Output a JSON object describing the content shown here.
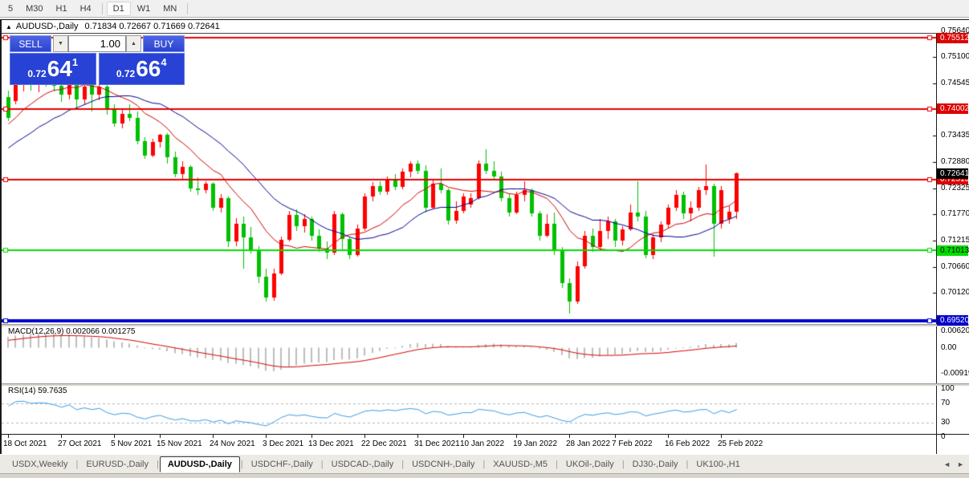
{
  "toolbar": {
    "timeframes": [
      "5",
      "M30",
      "H1",
      "H4",
      "D1",
      "W1",
      "MN"
    ],
    "active": "D1"
  },
  "window": {
    "title_symbol": "AUDUSD-,Daily",
    "title_ohlc": "0.71834 0.72667 0.71669 0.72641"
  },
  "trade_panel": {
    "sell_label": "SELL",
    "buy_label": "BUY",
    "volume": "1.00",
    "bid_small": "0.72",
    "bid_big": "64",
    "bid_sup": "1",
    "ask_small": "0.72",
    "ask_big": "66",
    "ask_sup": "4"
  },
  "chart_data": {
    "type": "candlestick",
    "symbol": "AUDUSD-",
    "timeframe": "Daily",
    "current_ohlc": {
      "open": 0.71834,
      "high": 0.72667,
      "low": 0.71669,
      "close": 0.72641
    },
    "price_ticks": [
      "0.75640",
      "0.75100",
      "0.74545",
      "0.73435",
      "0.72880",
      "0.72325",
      "0.71770",
      "0.71215",
      "0.70660",
      "0.70120"
    ],
    "levels": [
      {
        "price": 0.75512,
        "label": "0.75512",
        "color": "#e60000",
        "width": 2,
        "tag_bg": "#dd0000",
        "tag_fg": "#ffffff"
      },
      {
        "price": 0.74002,
        "label": "0.74002",
        "color": "#e60000",
        "width": 2,
        "tag_bg": "#dd0000",
        "tag_fg": "#ffffff"
      },
      {
        "price": 0.72513,
        "label": "0.72513",
        "color": "#e60000",
        "width": 2,
        "tag_bg": "#dd0000",
        "tag_fg": "#ffffff"
      },
      {
        "price": 0.71013,
        "label": "0.71013",
        "color": "#00dd00",
        "width": 2,
        "tag_bg": "#00dd00",
        "tag_fg": "#000000"
      },
      {
        "price": 0.6952,
        "label": "0.69520",
        "color": "#0000d0",
        "width": 4,
        "tag_bg": "#0000cc",
        "tag_fg": "#ffffff"
      }
    ],
    "current_price": {
      "price": 0.72641,
      "label": "0.72641",
      "tag_bg": "#000000",
      "tag_fg": "#ffffff"
    },
    "x_labels": [
      {
        "i": 0,
        "t": "18 Oct 2021"
      },
      {
        "i": 7,
        "t": "27 Oct 2021"
      },
      {
        "i": 14,
        "t": "5 Nov 2021"
      },
      {
        "i": 20,
        "t": "15 Nov 2021"
      },
      {
        "i": 27,
        "t": "24 Nov 2021"
      },
      {
        "i": 34,
        "t": "3 Dec 2021"
      },
      {
        "i": 40,
        "t": "13 Dec 2021"
      },
      {
        "i": 47,
        "t": "22 Dec 2021"
      },
      {
        "i": 54,
        "t": "31 Dec 2021"
      },
      {
        "i": 60,
        "t": "10 Jan 2022"
      },
      {
        "i": 67,
        "t": "19 Jan 2022"
      },
      {
        "i": 74,
        "t": "28 Jan 2022"
      },
      {
        "i": 80,
        "t": "7 Feb 2022"
      },
      {
        "i": 87,
        "t": "16 Feb 2022"
      },
      {
        "i": 94,
        "t": "25 Feb 2022"
      }
    ],
    "candles": [
      [
        0.7425,
        0.744,
        0.7375,
        0.7382
      ],
      [
        0.7417,
        0.7468,
        0.741,
        0.7462
      ],
      [
        0.7462,
        0.7475,
        0.7438,
        0.747
      ],
      [
        0.747,
        0.7478,
        0.744,
        0.7452
      ],
      [
        0.7452,
        0.7468,
        0.7435,
        0.7465
      ],
      [
        0.7465,
        0.7472,
        0.7448,
        0.7462
      ],
      [
        0.7462,
        0.747,
        0.7438,
        0.745
      ],
      [
        0.745,
        0.7458,
        0.7415,
        0.743
      ],
      [
        0.743,
        0.747,
        0.742,
        0.7465
      ],
      [
        0.7465,
        0.7468,
        0.7398,
        0.742
      ],
      [
        0.742,
        0.7455,
        0.7408,
        0.7448
      ],
      [
        0.7459,
        0.7462,
        0.7395,
        0.743
      ],
      [
        0.743,
        0.7455,
        0.7418,
        0.7448
      ],
      [
        0.7448,
        0.7452,
        0.7388,
        0.7398
      ],
      [
        0.7398,
        0.741,
        0.7362,
        0.737
      ],
      [
        0.737,
        0.7398,
        0.736,
        0.739
      ],
      [
        0.739,
        0.741,
        0.7375,
        0.7382
      ],
      [
        0.7382,
        0.7395,
        0.7325,
        0.7332
      ],
      [
        0.7332,
        0.734,
        0.7295,
        0.7302
      ],
      [
        0.7302,
        0.7338,
        0.7298,
        0.733
      ],
      [
        0.733,
        0.7348,
        0.7318,
        0.7345
      ],
      [
        0.7345,
        0.735,
        0.7285,
        0.7298
      ],
      [
        0.7298,
        0.731,
        0.7255,
        0.7262
      ],
      [
        0.7262,
        0.729,
        0.725,
        0.7278
      ],
      [
        0.7278,
        0.7282,
        0.7225,
        0.7232
      ],
      [
        0.7232,
        0.7255,
        0.7218,
        0.7228
      ],
      [
        0.7228,
        0.7248,
        0.7222,
        0.7242
      ],
      [
        0.7242,
        0.7245,
        0.7185,
        0.7192
      ],
      [
        0.7192,
        0.722,
        0.7182,
        0.7212
      ],
      [
        0.7212,
        0.7215,
        0.7108,
        0.712
      ],
      [
        0.712,
        0.717,
        0.711,
        0.7158
      ],
      [
        0.7158,
        0.7172,
        0.7063,
        0.7128
      ],
      [
        0.7128,
        0.715,
        0.7095,
        0.7102
      ],
      [
        0.7102,
        0.711,
        0.7032,
        0.7045
      ],
      [
        0.7045,
        0.7062,
        0.6993,
        0.7002
      ],
      [
        0.7002,
        0.7062,
        0.6995,
        0.7052
      ],
      [
        0.7052,
        0.713,
        0.7048,
        0.7124
      ],
      [
        0.7124,
        0.7185,
        0.712,
        0.7176
      ],
      [
        0.7176,
        0.7188,
        0.7142,
        0.7152
      ],
      [
        0.7152,
        0.7178,
        0.7138,
        0.7168
      ],
      [
        0.7168,
        0.7172,
        0.7122,
        0.7132
      ],
      [
        0.7132,
        0.7145,
        0.7098,
        0.7105
      ],
      [
        0.7105,
        0.712,
        0.7082,
        0.7096
      ],
      [
        0.7096,
        0.7185,
        0.7092,
        0.7178
      ],
      [
        0.7178,
        0.7182,
        0.7102,
        0.7125
      ],
      [
        0.7125,
        0.713,
        0.7082,
        0.7092
      ],
      [
        0.7092,
        0.7155,
        0.7088,
        0.7148
      ],
      [
        0.7148,
        0.7222,
        0.7142,
        0.7215
      ],
      [
        0.7215,
        0.7245,
        0.7205,
        0.7238
      ],
      [
        0.7238,
        0.7248,
        0.7218,
        0.7225
      ],
      [
        0.7225,
        0.7258,
        0.7218,
        0.7252
      ],
      [
        0.7252,
        0.7262,
        0.7228,
        0.7235
      ],
      [
        0.7235,
        0.7275,
        0.723,
        0.7268
      ],
      [
        0.7268,
        0.729,
        0.7255,
        0.7285
      ],
      [
        0.7285,
        0.7292,
        0.7262,
        0.727
      ],
      [
        0.727,
        0.7282,
        0.7182,
        0.7192
      ],
      [
        0.7192,
        0.725,
        0.7188,
        0.7242
      ],
      [
        0.7242,
        0.7275,
        0.7222,
        0.7228
      ],
      [
        0.7228,
        0.7232,
        0.7155,
        0.7165
      ],
      [
        0.7165,
        0.7205,
        0.7158,
        0.7185
      ],
      [
        0.7185,
        0.7222,
        0.718,
        0.7215
      ],
      [
        0.7198,
        0.7222,
        0.7192,
        0.7212
      ],
      [
        0.7212,
        0.7292,
        0.7208,
        0.7285
      ],
      [
        0.7285,
        0.7315,
        0.7262,
        0.727
      ],
      [
        0.727,
        0.729,
        0.7252,
        0.7258
      ],
      [
        0.7258,
        0.7268,
        0.7205,
        0.7212
      ],
      [
        0.7212,
        0.7222,
        0.7172,
        0.7182
      ],
      [
        0.7182,
        0.7225,
        0.7178,
        0.7218
      ],
      [
        0.7218,
        0.7248,
        0.7205,
        0.7228
      ],
      [
        0.7228,
        0.7232,
        0.7172,
        0.718
      ],
      [
        0.718,
        0.7185,
        0.7122,
        0.7132
      ],
      [
        0.7132,
        0.7178,
        0.7128,
        0.7158
      ],
      [
        0.7158,
        0.7182,
        0.7092,
        0.7102
      ],
      [
        0.7102,
        0.7108,
        0.7022,
        0.7032
      ],
      [
        0.7032,
        0.7042,
        0.6968,
        0.6992
      ],
      [
        0.6992,
        0.7078,
        0.6988,
        0.7068
      ],
      [
        0.7068,
        0.7142,
        0.7062,
        0.7132
      ],
      [
        0.7132,
        0.7148,
        0.7098,
        0.7108
      ],
      [
        0.7108,
        0.7168,
        0.7102,
        0.7142
      ],
      [
        0.7142,
        0.7172,
        0.7125,
        0.7162
      ],
      [
        0.7162,
        0.7168,
        0.7108,
        0.7122
      ],
      [
        0.7122,
        0.7152,
        0.7112,
        0.7145
      ],
      [
        0.7145,
        0.7198,
        0.7142,
        0.7182
      ],
      [
        0.7182,
        0.7248,
        0.7162,
        0.7172
      ],
      [
        0.7172,
        0.7185,
        0.7085,
        0.7092
      ],
      [
        0.7092,
        0.7135,
        0.7082,
        0.7128
      ],
      [
        0.7128,
        0.7162,
        0.7118,
        0.7155
      ],
      [
        0.7155,
        0.7198,
        0.7148,
        0.7192
      ],
      [
        0.7192,
        0.7228,
        0.7185,
        0.7218
      ],
      [
        0.7218,
        0.7225,
        0.7168,
        0.718
      ],
      [
        0.718,
        0.7205,
        0.7162,
        0.7192
      ],
      [
        0.7192,
        0.7235,
        0.7185,
        0.7228
      ],
      [
        0.7228,
        0.7283,
        0.7218,
        0.7238
      ],
      [
        0.7238,
        0.7242,
        0.7087,
        0.7158
      ],
      [
        0.7158,
        0.7238,
        0.7148,
        0.7228
      ],
      [
        0.7168,
        0.7195,
        0.7158,
        0.7183
      ],
      [
        0.71834,
        0.72667,
        0.71669,
        0.72641
      ]
    ],
    "indicators": {
      "ma_fast": {
        "type": "SMA",
        "period": 10,
        "color": "#cc0000"
      },
      "ma_slow": {
        "type": "SMA",
        "period": 20,
        "color": "#000090"
      },
      "seed_closes": [
        0.7262,
        0.7248,
        0.7255,
        0.724,
        0.7252,
        0.7268,
        0.7275,
        0.7285,
        0.727,
        0.7292,
        0.731,
        0.7318,
        0.7305,
        0.7332,
        0.735,
        0.7362,
        0.738,
        0.7412,
        0.7422,
        0.7432
      ],
      "macd": {
        "label": "MACD(12,26,9)",
        "values_text": "0.002066 0.001275",
        "axis_labels": [
          "0.006201",
          "0.00",
          "-0.009197"
        ],
        "axis_values": [
          0.006201,
          0,
          -0.009197
        ],
        "hist_color": "#bdbdbd",
        "signal_color": "#d40000"
      },
      "rsi": {
        "label": "RSI(14)",
        "value_text": "59.7635",
        "axis_labels": [
          "100",
          "70",
          "30",
          "0"
        ],
        "axis_values": [
          100,
          70,
          30,
          0
        ],
        "line_color": "#3b9ae1",
        "level_high": 70,
        "level_low": 30
      }
    },
    "style": {
      "up_color": "#ff0000",
      "down_color": "#00c000"
    }
  },
  "tabs": {
    "items": [
      "USDX,Weekly",
      "EURUSD-,Daily",
      "AUDUSD-,Daily",
      "USDCHF-,Daily",
      "USDCAD-,Daily",
      "USDCNH-,Daily",
      "XAUUSD-,M5",
      "UKOil-,Daily",
      "DJ30-,Daily",
      "UK100-,H1"
    ],
    "active": "AUDUSD-,Daily"
  }
}
